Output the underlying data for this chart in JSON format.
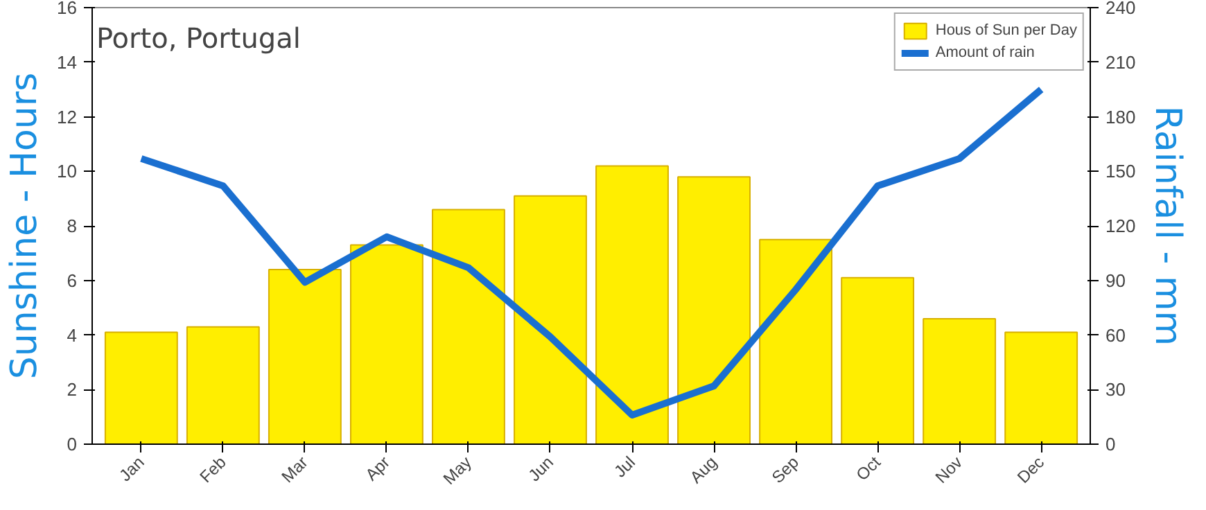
{
  "chart_data": {
    "type": "bar",
    "title": "Porto, Portugal",
    "ylabel": "Sunshine - Hours",
    "y2label": "Rainfall - mm",
    "categories": [
      "Jan",
      "Feb",
      "Mar",
      "Apr",
      "May",
      "Jun",
      "Jul",
      "Aug",
      "Sep",
      "Oct",
      "Nov",
      "Dec"
    ],
    "series": [
      {
        "name": "Hous of Sun per Day",
        "color": "#ffee00",
        "values": [
          4.1,
          4.3,
          6.4,
          7.3,
          8.6,
          9.1,
          10.2,
          9.8,
          7.5,
          6.1,
          4.6,
          4.1
        ]
      },
      {
        "name": "Amount of rain",
        "type": "line",
        "axis": "y2",
        "color": "#1a6fd0",
        "values": [
          157,
          142,
          89,
          114,
          97,
          59,
          16,
          32,
          85,
          142,
          157,
          195
        ]
      }
    ],
    "ylim": [
      0,
      16
    ],
    "yticks": [
      0,
      2,
      4,
      6,
      8,
      10,
      12,
      14,
      16
    ],
    "y2lim": [
      0,
      240
    ],
    "y2ticks": [
      0,
      30,
      60,
      90,
      120,
      150,
      180,
      210,
      240
    ],
    "grid": false,
    "legend": "top right",
    "line_style": "solid"
  }
}
